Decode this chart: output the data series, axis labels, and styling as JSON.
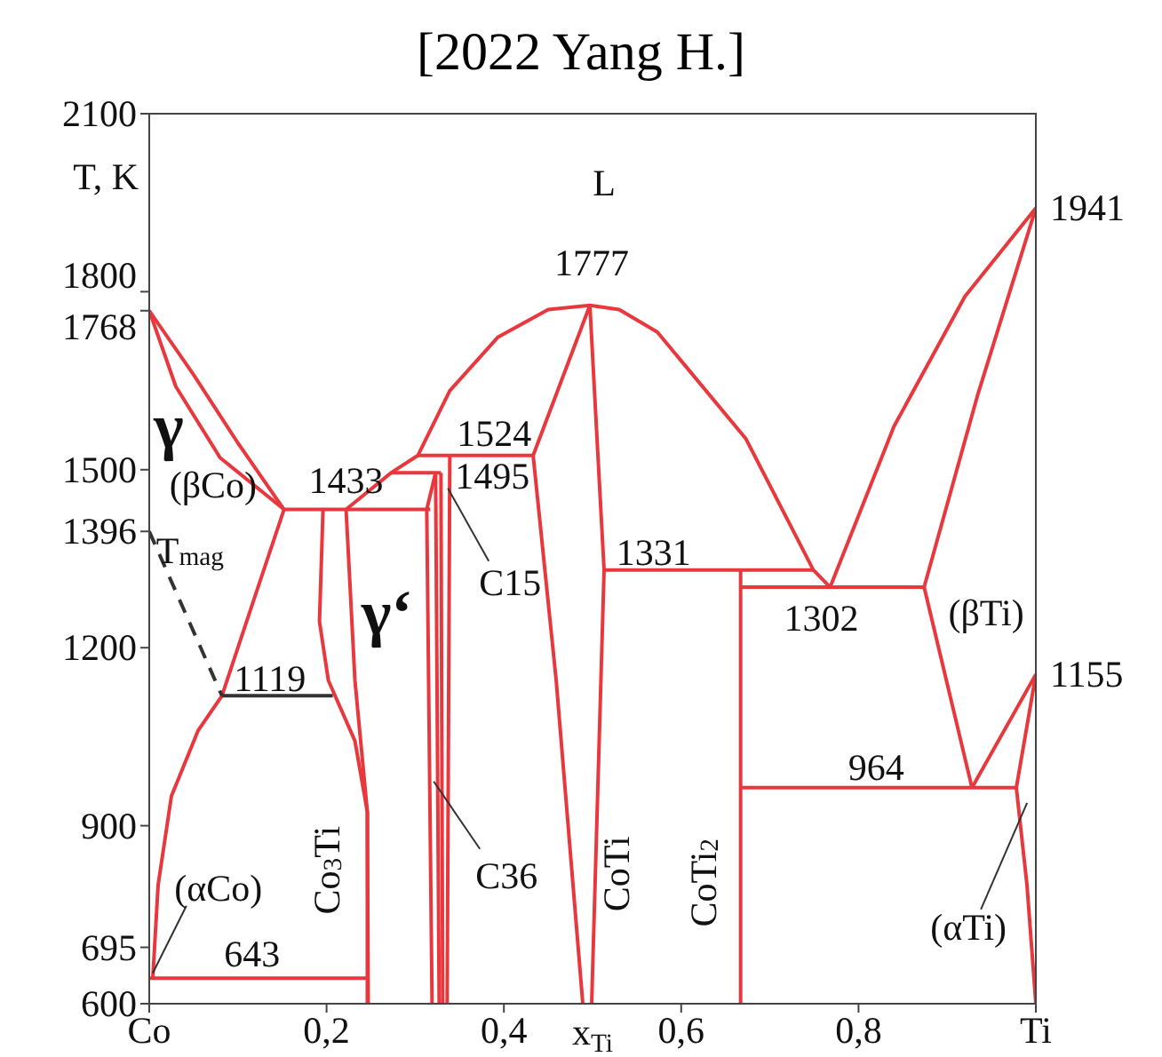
{
  "chart_data": {
    "type": "line",
    "title": "[2022 Yang H.]",
    "xlabel": "x$_{Ti}$",
    "ylabel": "T, K",
    "xlim": [
      0,
      1
    ],
    "ylim": [
      600,
      2100
    ],
    "xticks": [
      {
        "value": 0,
        "label": "Co"
      },
      {
        "value": 0.2,
        "label": "0,2"
      },
      {
        "value": 0.4,
        "label": "0,4"
      },
      {
        "value": 0.6,
        "label": "0,6"
      },
      {
        "value": 0.8,
        "label": "0,8"
      },
      {
        "value": 1,
        "label": "Ti"
      }
    ],
    "yticks": [
      600,
      695,
      900,
      1200,
      1396,
      1500,
      1768,
      1800,
      2100
    ],
    "marker": "none",
    "series": [
      {
        "color": "#e8383d",
        "x": [
          0,
          0.05,
          0.1,
          0.152
        ],
        "values": [
          1768,
          1660,
          1545,
          1433
        ]
      },
      {
        "color": "#e8383d",
        "x": [
          0,
          0.03,
          0.08,
          0.152
        ],
        "values": [
          1768,
          1640,
          1520,
          1433
        ]
      },
      {
        "color": "#e8383d",
        "x": [
          0.152,
          0.317
        ],
        "values": [
          1433,
          1433
        ]
      },
      {
        "color": "#e8383d",
        "x": [
          0.152,
          0.12,
          0.082,
          0.055,
          0.025,
          0.01,
          0.004
        ],
        "values": [
          1433,
          1290,
          1119,
          1060,
          950,
          800,
          643
        ]
      },
      {
        "color": "#e8383d",
        "x": [
          0,
          0.246
        ],
        "values": [
          643,
          643
        ]
      },
      {
        "color": "#e8383d",
        "x": [
          0.196,
          0.192,
          0.202,
          0.232,
          0.246,
          0.246
        ],
        "values": [
          1433,
          1244,
          1145,
          1043,
          923,
          600
        ]
      },
      {
        "color": "#e8383d",
        "x": [
          0.222,
          0.232,
          0.246,
          0.247
        ],
        "values": [
          1433,
          1145,
          923,
          600
        ]
      },
      {
        "color": "#e8383d",
        "x": [
          0.222,
          0.273,
          0.303,
          0.339,
          0.393,
          0.45,
          0.497,
          0.53,
          0.573,
          0.673,
          0.749,
          0.768
        ],
        "values": [
          1433,
          1495,
          1524,
          1633,
          1723,
          1770,
          1777,
          1770,
          1732,
          1552,
          1331,
          1302
        ]
      },
      {
        "color": "#e8383d",
        "x": [
          0.273,
          0.329
        ],
        "values": [
          1495,
          1495
        ]
      },
      {
        "color": "#e8383d",
        "x": [
          0.303,
          0.433
        ],
        "values": [
          1524,
          1524
        ]
      },
      {
        "color": "#e8383d",
        "x": [
          0.323,
          0.313,
          0.319
        ],
        "values": [
          1495,
          1433,
          600
        ]
      },
      {
        "color": "#e8383d",
        "x": [
          0.323,
          0.327
        ],
        "values": [
          1495,
          600
        ]
      },
      {
        "color": "#e8383d",
        "x": [
          0.329,
          0.331
        ],
        "values": [
          1495,
          600
        ]
      },
      {
        "color": "#e8383d",
        "x": [
          0.339,
          0.336
        ],
        "values": [
          1524,
          600
        ]
      },
      {
        "color": "#e8383d",
        "x": [
          0.497,
          0.433
        ],
        "values": [
          1777,
          1524
        ]
      },
      {
        "color": "#e8383d",
        "x": [
          0.433,
          0.459,
          0.489
        ],
        "values": [
          1524,
          1145,
          600
        ]
      },
      {
        "color": "#e8383d",
        "x": [
          0.497,
          0.513,
          0.499
        ],
        "values": [
          1777,
          1331,
          600
        ]
      },
      {
        "color": "#e8383d",
        "x": [
          0.513,
          0.75
        ],
        "values": [
          1331,
          1331
        ]
      },
      {
        "color": "#e8383d",
        "x": [
          0.667,
          0.874
        ],
        "values": [
          1302,
          1302
        ]
      },
      {
        "color": "#e8383d",
        "x": [
          0.667,
          0.667
        ],
        "values": [
          1331,
          600
        ]
      },
      {
        "color": "#e8383d",
        "x": [
          0.768,
          0.84,
          0.92,
          1
        ],
        "values": [
          1302,
          1573,
          1792,
          1941
        ]
      },
      {
        "color": "#e8383d",
        "x": [
          1,
          0.934,
          0.874
        ],
        "values": [
          1941,
          1624,
          1302
        ]
      },
      {
        "color": "#e8383d",
        "x": [
          0.874,
          0.928
        ],
        "values": [
          1302,
          964
        ]
      },
      {
        "color": "#e8383d",
        "x": [
          0.667,
          0.978
        ],
        "values": [
          964,
          964
        ]
      },
      {
        "color": "#e8383d",
        "x": [
          0.928,
          1
        ],
        "values": [
          964,
          1155
        ]
      },
      {
        "color": "#e8383d",
        "x": [
          1,
          0.978,
          0.99,
          1
        ],
        "values": [
          1155,
          964,
          800,
          600
        ]
      },
      {
        "color": "#333333",
        "line_style": "dashed",
        "x": [
          0,
          0.082
        ],
        "values": [
          1396,
          1119
        ]
      },
      {
        "color": "#333333",
        "x": [
          0.082,
          0.207
        ],
        "values": [
          1119,
          1119
        ]
      }
    ],
    "annotations": [
      "L",
      "1777",
      "1941",
      "1155",
      "γ",
      "(βCo)",
      "1433",
      "1524",
      "1495",
      "T$_{mag}$",
      "γ‘",
      "C15",
      "1331",
      "1302",
      "(βTi)",
      "1119",
      "964",
      "C36",
      "Co$_{3}$Ti",
      "CoTi",
      "CoTi$_{2}$",
      "(αCo)",
      "643",
      "(αTi)"
    ]
  }
}
